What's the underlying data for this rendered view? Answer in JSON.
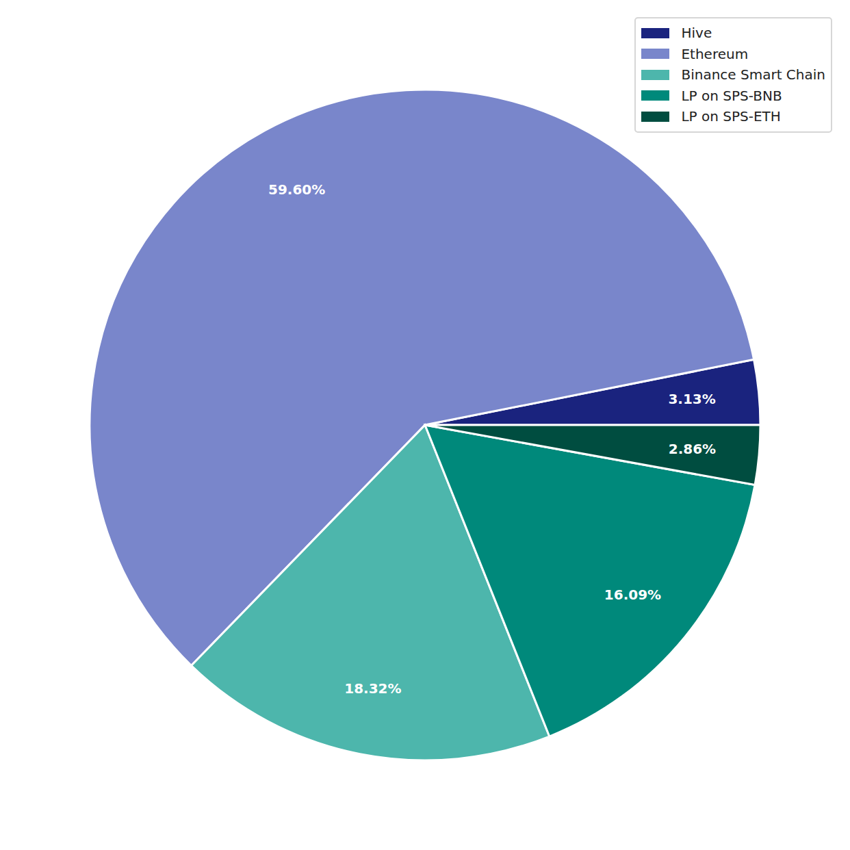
{
  "chart_data": {
    "type": "pie",
    "categories": [
      "Hive",
      "Ethereum",
      "Binance Smart Chain",
      "LP on SPS-BNB",
      "LP on SPS-ETH"
    ],
    "values": [
      3.13,
      59.6,
      18.32,
      16.09,
      2.86
    ],
    "value_labels": [
      "3.13%",
      "59.60%",
      "18.32%",
      "16.09%",
      "2.86%"
    ],
    "colors": [
      "#1a237e",
      "#7986cb",
      "#4db6ac",
      "#00897b",
      "#004d40"
    ],
    "data_labels": true,
    "legend": "upper right"
  }
}
